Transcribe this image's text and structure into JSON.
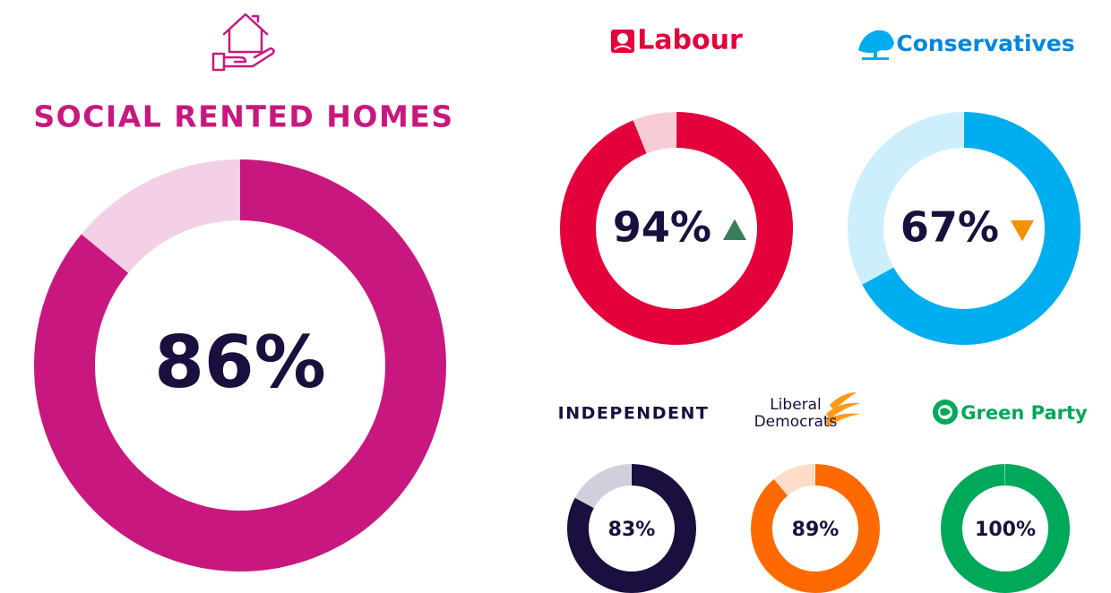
{
  "chart_data": [
    {
      "type": "donut",
      "title": "SOCIAL RENTED HOMES",
      "values": [
        86,
        14
      ],
      "value_labels": [
        "86%",
        null
      ],
      "colors": [
        "#c8187f",
        "#f4d0e6"
      ]
    },
    {
      "type": "donut",
      "title": "Labour",
      "values": [
        94,
        6
      ],
      "value_labels": [
        "94%",
        null
      ],
      "colors": [
        "#e4003b",
        "#f8ccd5"
      ],
      "trend": "up",
      "trend_color": "#3a7d5e"
    },
    {
      "type": "donut",
      "title": "Conservatives",
      "values": [
        67,
        33
      ],
      "value_labels": [
        "67%",
        null
      ],
      "colors": [
        "#00aeef",
        "#cdeefb"
      ],
      "trend": "down",
      "trend_color": "#f39200"
    },
    {
      "type": "donut",
      "title": "INDEPENDENT",
      "values": [
        83,
        17
      ],
      "value_labels": [
        "83%",
        null
      ],
      "colors": [
        "#1a0f3e",
        "#d0cfdb"
      ]
    },
    {
      "type": "donut",
      "title_lines": [
        "Liberal",
        "Democrats"
      ],
      "values": [
        89,
        11
      ],
      "value_labels": [
        "89%",
        null
      ],
      "colors": [
        "#ff6a00",
        "#ffdcc7"
      ]
    },
    {
      "type": "donut",
      "title": "Green Party",
      "values": [
        100,
        0
      ],
      "value_labels": [
        "100%",
        null
      ],
      "colors": [
        "#00a85a",
        "#cdeedc"
      ]
    }
  ]
}
